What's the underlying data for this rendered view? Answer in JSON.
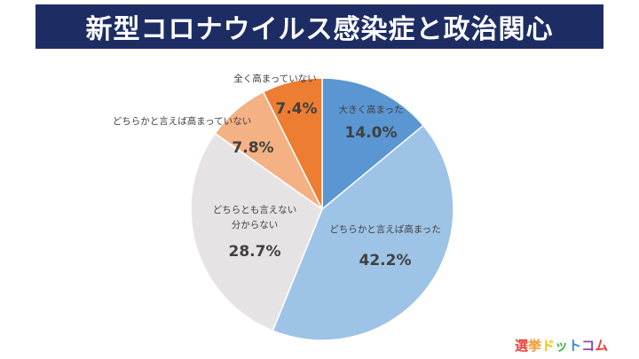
{
  "header": {
    "title": "新型コロナウイルス感染症と政治関心"
  },
  "logo": {
    "text": "選挙ドットコム"
  },
  "colors": {
    "title_bg": "#1d2d64",
    "title_text": "#ffffff",
    "label_text": "#404040",
    "logo_colors": [
      "#e8413c",
      "#f29a2e",
      "#f5c518",
      "#3cb44a",
      "#2a8fd6",
      "#8e44ad",
      "#e8413c"
    ]
  },
  "chart_data": {
    "type": "pie",
    "title": "新型コロナウイルス感染症と政治関心",
    "start_angle_deg": 0,
    "direction": "clockwise",
    "slices": [
      {
        "label_lines": [
          "大きく高まった"
        ],
        "value": 14.0,
        "value_label": "14.0%",
        "color": "#5a96d2"
      },
      {
        "label_lines": [
          "どちらかと言えば高まった"
        ],
        "value": 42.2,
        "value_label": "42.2%",
        "color": "#9dc3e6"
      },
      {
        "label_lines": [
          "どちらとも言えない",
          "分からない"
        ],
        "value": 28.7,
        "value_label": "28.7%",
        "color": "#e6e3e5"
      },
      {
        "label_lines": [
          "どちらかと言えば高まっていない"
        ],
        "value": 7.8,
        "value_label": "7.8%",
        "color": "#f4b183"
      },
      {
        "label_lines": [
          "全く高まっていない"
        ],
        "value": 7.4,
        "value_label": "7.4%",
        "color": "#ed7d31"
      }
    ]
  }
}
